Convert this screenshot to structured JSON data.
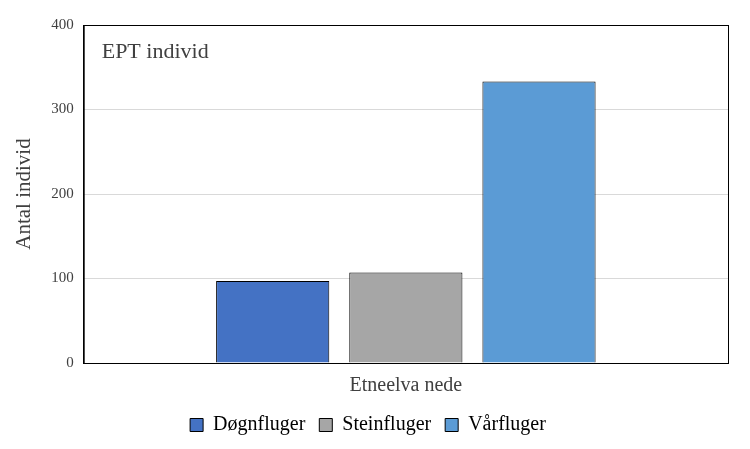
{
  "chart_data": {
    "type": "bar",
    "title": "EPT individ",
    "categories": [
      "Etneelva nede"
    ],
    "series": [
      {
        "name": "Døgnfluger",
        "color": "#4472c4",
        "values": [
          97
        ]
      },
      {
        "name": "Steinfluger",
        "color": "#a6a6a6",
        "values": [
          107
        ]
      },
      {
        "name": "Vårfluger",
        "color": "#5b9bd5",
        "values": [
          333
        ]
      }
    ],
    "y_label": "Antal individ",
    "ylim": [
      0,
      400
    ],
    "yticks": [
      0,
      100,
      200,
      300,
      400
    ],
    "grid": true,
    "legend": "bottom"
  }
}
